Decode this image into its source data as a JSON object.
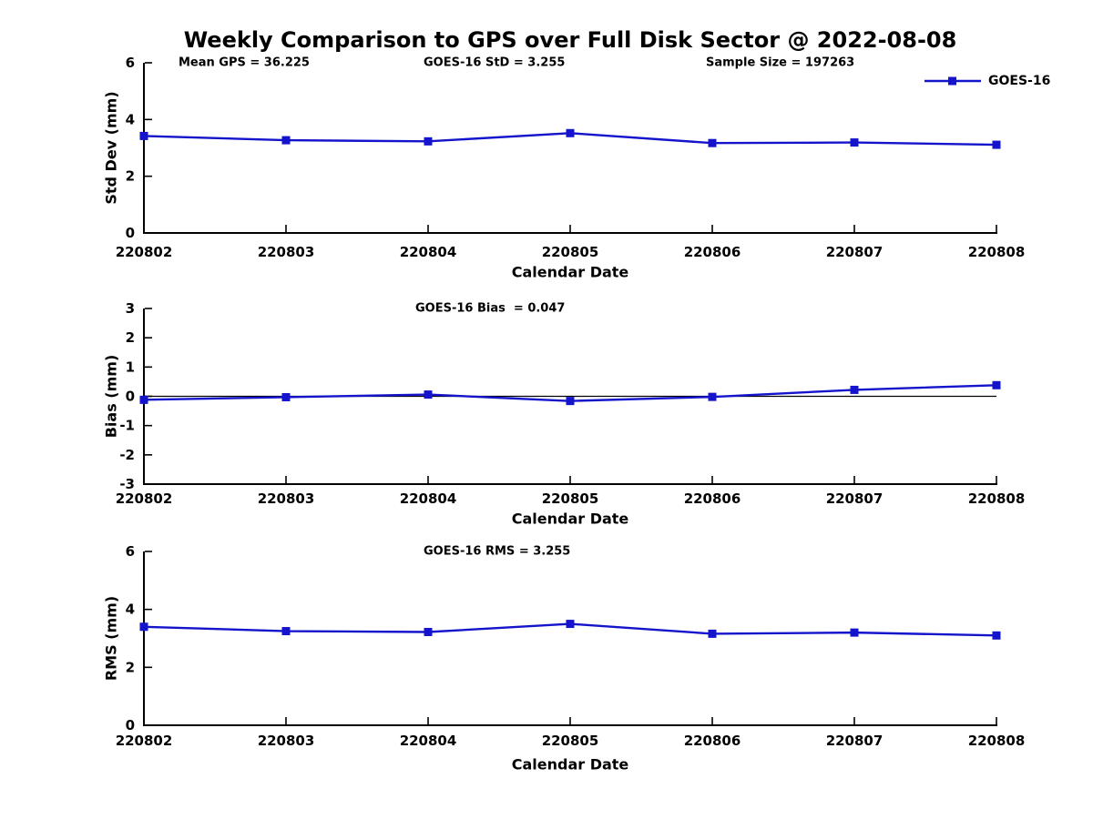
{
  "title": "Weekly Comparison to GPS over Full Disk Sector @ 2022-08-08",
  "colors": {
    "line": "#1414cc",
    "axis": "#000000",
    "zero_line": "#000000",
    "text": "#000000",
    "background": "#ffffff"
  },
  "legend": {
    "label": "GOES-16",
    "marker": "filled-square",
    "position": "top-right"
  },
  "header_annotations": [
    "Mean GPS = 36.225",
    "GOES-16 StD = 3.255",
    "Sample Size = 197263"
  ],
  "chart_data": [
    {
      "type": "line",
      "name": "std-dev-panel",
      "annotation": null,
      "xlabel": "Calendar Date",
      "ylabel": "Std Dev (mm)",
      "ylim": [
        0,
        6
      ],
      "yticks": [
        0,
        2,
        4,
        6
      ],
      "grid": false,
      "zero_line": false,
      "categories": [
        "220802",
        "220803",
        "220804",
        "220805",
        "220806",
        "220807",
        "220808"
      ],
      "series": [
        {
          "name": "GOES-16",
          "values": [
            3.42,
            3.27,
            3.23,
            3.52,
            3.17,
            3.19,
            3.11
          ]
        }
      ]
    },
    {
      "type": "line",
      "name": "bias-panel",
      "annotation": "GOES-16 Bias  = 0.047",
      "xlabel": "Calendar Date",
      "ylabel": "Bias (mm)",
      "ylim": [
        -3,
        3
      ],
      "yticks": [
        -3,
        -2,
        -1,
        0,
        1,
        2,
        3
      ],
      "grid": false,
      "zero_line": true,
      "categories": [
        "220802",
        "220803",
        "220804",
        "220805",
        "220806",
        "220807",
        "220808"
      ],
      "series": [
        {
          "name": "GOES-16",
          "values": [
            -0.12,
            -0.03,
            0.06,
            -0.16,
            -0.02,
            0.22,
            0.38
          ]
        }
      ]
    },
    {
      "type": "line",
      "name": "rms-panel",
      "annotation": "GOES-16 RMS = 3.255",
      "xlabel": "Calendar Date",
      "ylabel": "RMS (mm)",
      "ylim": [
        0,
        6
      ],
      "yticks": [
        0,
        2,
        4,
        6
      ],
      "grid": false,
      "zero_line": false,
      "categories": [
        "220802",
        "220803",
        "220804",
        "220805",
        "220806",
        "220807",
        "220808"
      ],
      "series": [
        {
          "name": "GOES-16",
          "values": [
            3.4,
            3.25,
            3.22,
            3.5,
            3.16,
            3.2,
            3.1
          ]
        }
      ]
    }
  ]
}
